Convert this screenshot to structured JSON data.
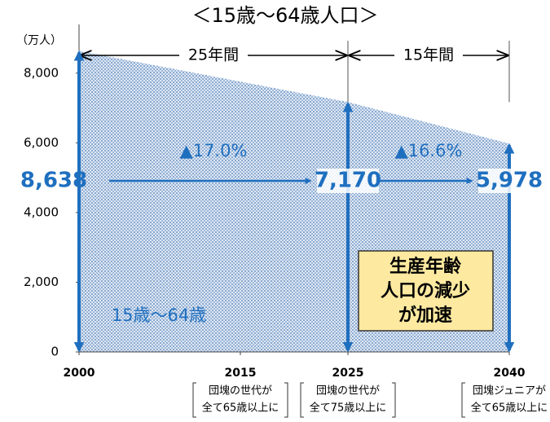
{
  "chart_data": {
    "type": "area",
    "title": "＜15歳～64歳人口＞",
    "y_axis_label": "（万人）",
    "x": [
      2000,
      2025,
      2040
    ],
    "values": [
      8638,
      7170,
      5978
    ],
    "value_labels": [
      "8,638",
      "7,170",
      "5,978"
    ],
    "color": "#1f6fbf",
    "xlim": [
      2000,
      2040
    ],
    "xticks": [
      2000,
      2015,
      2025,
      2040
    ],
    "ylim": [
      0,
      9000
    ],
    "yticks": [
      0,
      {
        "value": 2000,
        "label": "2,000"
      },
      {
        "value": 4000,
        "label": "4,000"
      },
      {
        "value": 6000,
        "label": "6,000"
      },
      {
        "value": 8000,
        "label": "8,000"
      }
    ],
    "series_label": "15歳～64歳",
    "periods": [
      {
        "label": "25年間",
        "from": 2000,
        "to": 2025
      },
      {
        "label": "15年間",
        "from": 2025,
        "to": 2040
      }
    ],
    "changes": [
      "▲17.0%",
      "▲16.6%"
    ],
    "notes": [
      {
        "x": 2015,
        "lines": [
          "団塊の世代が",
          "全て65歳以上に"
        ]
      },
      {
        "x": 2025,
        "lines": [
          "団塊の世代が",
          "全て75歳以上に"
        ]
      },
      {
        "x": 2040,
        "lines": [
          "団塊ジュニアが",
          "全て65歳以上に"
        ]
      }
    ],
    "callout": [
      "生産年齢",
      "人口の減少",
      "が加速"
    ]
  }
}
